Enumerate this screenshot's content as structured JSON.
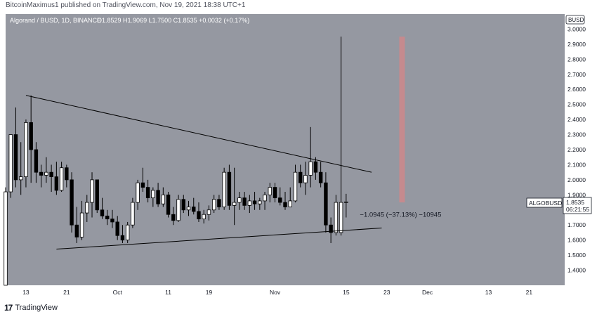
{
  "header": {
    "published": "BitcoinMaximus1 published on TradingView.com, Nov 19, 2021 18:38 UTC+1"
  },
  "legend": {
    "symbol": "Algorand / BUSD, 1D, BINANCE",
    "ohlc": [
      {
        "k": "O",
        "v": "1.8529"
      },
      {
        "k": "H",
        "v": "1.9069"
      },
      {
        "k": "L",
        "v": "1.7500"
      },
      {
        "k": "C",
        "v": "1.8535"
      }
    ],
    "change": "+0.0032 (+0.17%)"
  },
  "currency_badge": "BUSD",
  "price_badge": {
    "label": "ALGOBUSD",
    "price": "1.8535",
    "countdown": "06:21:55"
  },
  "measure_label": "−1.0945 (−37.13%) −10945",
  "footer": {
    "brand": "TradingView",
    "mark": "17"
  },
  "colors": {
    "plot_bg": "#9598a1",
    "candle_up": "#ffffff",
    "candle_down": "#000000",
    "measure_bar": "#c58a8e",
    "axis_bg": "#ffffff"
  },
  "chart_data": {
    "type": "candlestick",
    "ylim": [
      1.3,
      3.1
    ],
    "y_ticks": [
      "3.0000",
      "2.9000",
      "2.8000",
      "2.7000",
      "2.6000",
      "2.5000",
      "2.4000",
      "2.3000",
      "2.2000",
      "2.1000",
      "2.0000",
      "1.9000",
      "1.7000",
      "1.6000",
      "1.5000",
      "1.4000"
    ],
    "x_ticks": [
      {
        "label": "13",
        "d": -26
      },
      {
        "label": "21",
        "d": -18
      },
      {
        "label": "Oct",
        "d": -8
      },
      {
        "label": "11",
        "d": 2
      },
      {
        "label": "19",
        "d": 10
      },
      {
        "label": "Nov",
        "d": 23
      },
      {
        "label": "15",
        "d": 37
      },
      {
        "label": "23",
        "d": 45
      },
      {
        "label": "Dec",
        "d": 53
      },
      {
        "label": "13",
        "d": 65
      },
      {
        "label": "21",
        "d": 73
      }
    ],
    "xlim": [
      -30,
      80
    ],
    "candles": [
      {
        "d": -30,
        "o": 1.3,
        "h": 1.95,
        "l": 1.3,
        "c": 1.92
      },
      {
        "d": -29,
        "o": 1.92,
        "h": 2.3,
        "l": 1.88,
        "c": 2.3
      },
      {
        "d": -28,
        "o": 2.3,
        "h": 2.48,
        "l": 1.95,
        "c": 2.0
      },
      {
        "d": -27,
        "o": 2.0,
        "h": 2.25,
        "l": 1.9,
        "c": 2.02
      },
      {
        "d": -26,
        "o": 2.02,
        "h": 2.4,
        "l": 1.95,
        "c": 2.38
      },
      {
        "d": -25,
        "o": 2.38,
        "h": 2.56,
        "l": 1.98,
        "c": 2.2
      },
      {
        "d": -24,
        "o": 2.2,
        "h": 2.25,
        "l": 1.98,
        "c": 2.05
      },
      {
        "d": -23,
        "o": 2.05,
        "h": 2.1,
        "l": 1.95,
        "c": 2.03
      },
      {
        "d": -22,
        "o": 2.03,
        "h": 2.15,
        "l": 1.98,
        "c": 2.05
      },
      {
        "d": -21,
        "o": 2.05,
        "h": 2.1,
        "l": 1.92,
        "c": 2.02
      },
      {
        "d": -20,
        "o": 2.02,
        "h": 2.12,
        "l": 1.9,
        "c": 1.93
      },
      {
        "d": -19,
        "o": 1.93,
        "h": 2.12,
        "l": 1.92,
        "c": 2.08
      },
      {
        "d": -18,
        "o": 2.08,
        "h": 2.1,
        "l": 1.95,
        "c": 2.0
      },
      {
        "d": -17,
        "o": 2.0,
        "h": 2.05,
        "l": 1.65,
        "c": 1.7
      },
      {
        "d": -16,
        "o": 1.7,
        "h": 1.82,
        "l": 1.58,
        "c": 1.62
      },
      {
        "d": -15,
        "o": 1.62,
        "h": 1.86,
        "l": 1.6,
        "c": 1.78
      },
      {
        "d": -14,
        "o": 1.78,
        "h": 1.9,
        "l": 1.72,
        "c": 1.85
      },
      {
        "d": -13,
        "o": 1.85,
        "h": 2.05,
        "l": 1.75,
        "c": 2.0
      },
      {
        "d": -12,
        "o": 2.0,
        "h": 2.0,
        "l": 1.78,
        "c": 1.8
      },
      {
        "d": -11,
        "o": 1.8,
        "h": 1.88,
        "l": 1.74,
        "c": 1.76
      },
      {
        "d": -10,
        "o": 1.76,
        "h": 1.8,
        "l": 1.7,
        "c": 1.74
      },
      {
        "d": -9,
        "o": 1.74,
        "h": 1.8,
        "l": 1.68,
        "c": 1.72
      },
      {
        "d": -8,
        "o": 1.72,
        "h": 1.76,
        "l": 1.6,
        "c": 1.63
      },
      {
        "d": -7,
        "o": 1.63,
        "h": 1.7,
        "l": 1.58,
        "c": 1.6
      },
      {
        "d": -6,
        "o": 1.6,
        "h": 1.72,
        "l": 1.58,
        "c": 1.7
      },
      {
        "d": -5,
        "o": 1.7,
        "h": 1.88,
        "l": 1.68,
        "c": 1.85
      },
      {
        "d": -4,
        "o": 1.85,
        "h": 2.0,
        "l": 1.8,
        "c": 1.98
      },
      {
        "d": -3,
        "o": 1.98,
        "h": 2.08,
        "l": 1.92,
        "c": 1.95
      },
      {
        "d": -2,
        "o": 1.95,
        "h": 2.0,
        "l": 1.85,
        "c": 1.88
      },
      {
        "d": -1,
        "o": 1.88,
        "h": 1.95,
        "l": 1.82,
        "c": 1.93
      },
      {
        "d": 0,
        "o": 1.93,
        "h": 1.98,
        "l": 1.82,
        "c": 1.84
      },
      {
        "d": 1,
        "o": 1.84,
        "h": 1.95,
        "l": 1.82,
        "c": 1.9
      },
      {
        "d": 2,
        "o": 1.9,
        "h": 1.92,
        "l": 1.75,
        "c": 1.77
      },
      {
        "d": 3,
        "o": 1.77,
        "h": 1.82,
        "l": 1.7,
        "c": 1.73
      },
      {
        "d": 4,
        "o": 1.73,
        "h": 1.9,
        "l": 1.72,
        "c": 1.87
      },
      {
        "d": 5,
        "o": 1.87,
        "h": 1.9,
        "l": 1.78,
        "c": 1.8
      },
      {
        "d": 6,
        "o": 1.8,
        "h": 1.86,
        "l": 1.76,
        "c": 1.82
      },
      {
        "d": 7,
        "o": 1.82,
        "h": 1.88,
        "l": 1.77,
        "c": 1.79
      },
      {
        "d": 8,
        "o": 1.79,
        "h": 1.85,
        "l": 1.72,
        "c": 1.74
      },
      {
        "d": 9,
        "o": 1.74,
        "h": 1.8,
        "l": 1.71,
        "c": 1.77
      },
      {
        "d": 10,
        "o": 1.77,
        "h": 1.83,
        "l": 1.73,
        "c": 1.8
      },
      {
        "d": 11,
        "o": 1.8,
        "h": 1.9,
        "l": 1.78,
        "c": 1.87
      },
      {
        "d": 12,
        "o": 1.87,
        "h": 1.9,
        "l": 1.8,
        "c": 1.82
      },
      {
        "d": 13,
        "o": 1.82,
        "h": 2.08,
        "l": 1.8,
        "c": 2.05
      },
      {
        "d": 14,
        "o": 2.05,
        "h": 2.1,
        "l": 1.8,
        "c": 1.83
      },
      {
        "d": 15,
        "o": 1.83,
        "h": 2.08,
        "l": 1.7,
        "c": 1.85
      },
      {
        "d": 16,
        "o": 1.85,
        "h": 1.92,
        "l": 1.8,
        "c": 1.88
      },
      {
        "d": 17,
        "o": 1.88,
        "h": 1.92,
        "l": 1.8,
        "c": 1.83
      },
      {
        "d": 18,
        "o": 1.83,
        "h": 1.9,
        "l": 1.78,
        "c": 1.86
      },
      {
        "d": 19,
        "o": 1.86,
        "h": 1.92,
        "l": 1.8,
        "c": 1.84
      },
      {
        "d": 20,
        "o": 1.84,
        "h": 1.88,
        "l": 1.8,
        "c": 1.86
      },
      {
        "d": 21,
        "o": 1.86,
        "h": 1.92,
        "l": 1.8,
        "c": 1.9
      },
      {
        "d": 22,
        "o": 1.9,
        "h": 1.98,
        "l": 1.85,
        "c": 1.95
      },
      {
        "d": 23,
        "o": 1.95,
        "h": 1.98,
        "l": 1.85,
        "c": 1.88
      },
      {
        "d": 24,
        "o": 1.88,
        "h": 1.95,
        "l": 1.83,
        "c": 1.85
      },
      {
        "d": 25,
        "o": 1.85,
        "h": 1.92,
        "l": 1.8,
        "c": 1.82
      },
      {
        "d": 26,
        "o": 1.82,
        "h": 1.95,
        "l": 1.82,
        "c": 1.86
      },
      {
        "d": 27,
        "o": 1.86,
        "h": 2.1,
        "l": 1.85,
        "c": 2.05
      },
      {
        "d": 28,
        "o": 2.05,
        "h": 2.1,
        "l": 1.95,
        "c": 1.98
      },
      {
        "d": 29,
        "o": 1.98,
        "h": 2.12,
        "l": 1.9,
        "c": 2.03
      },
      {
        "d": 30,
        "o": 2.03,
        "h": 2.35,
        "l": 1.95,
        "c": 2.12
      },
      {
        "d": 31,
        "o": 2.12,
        "h": 2.15,
        "l": 2.0,
        "c": 2.05
      },
      {
        "d": 32,
        "o": 2.05,
        "h": 2.12,
        "l": 1.95,
        "c": 1.98
      },
      {
        "d": 33,
        "o": 1.98,
        "h": 2.05,
        "l": 1.65,
        "c": 1.7
      },
      {
        "d": 34,
        "o": 1.7,
        "h": 1.75,
        "l": 1.58,
        "c": 1.65
      },
      {
        "d": 35,
        "o": 1.65,
        "h": 1.9,
        "l": 1.63,
        "c": 1.85
      },
      {
        "d": 36,
        "o": 1.65,
        "h": 2.95,
        "l": 1.63,
        "c": 1.85
      },
      {
        "d": 37,
        "o": 1.8529,
        "h": 1.9069,
        "l": 1.75,
        "c": 1.8535
      }
    ],
    "trendlines": [
      {
        "x1": -26,
        "y1": 2.56,
        "x2": 42,
        "y2": 2.05
      },
      {
        "x1": -20,
        "y1": 1.54,
        "x2": 44,
        "y2": 1.68
      }
    ],
    "measure": {
      "d": 48,
      "top": 2.95,
      "bottom": 1.85
    }
  }
}
